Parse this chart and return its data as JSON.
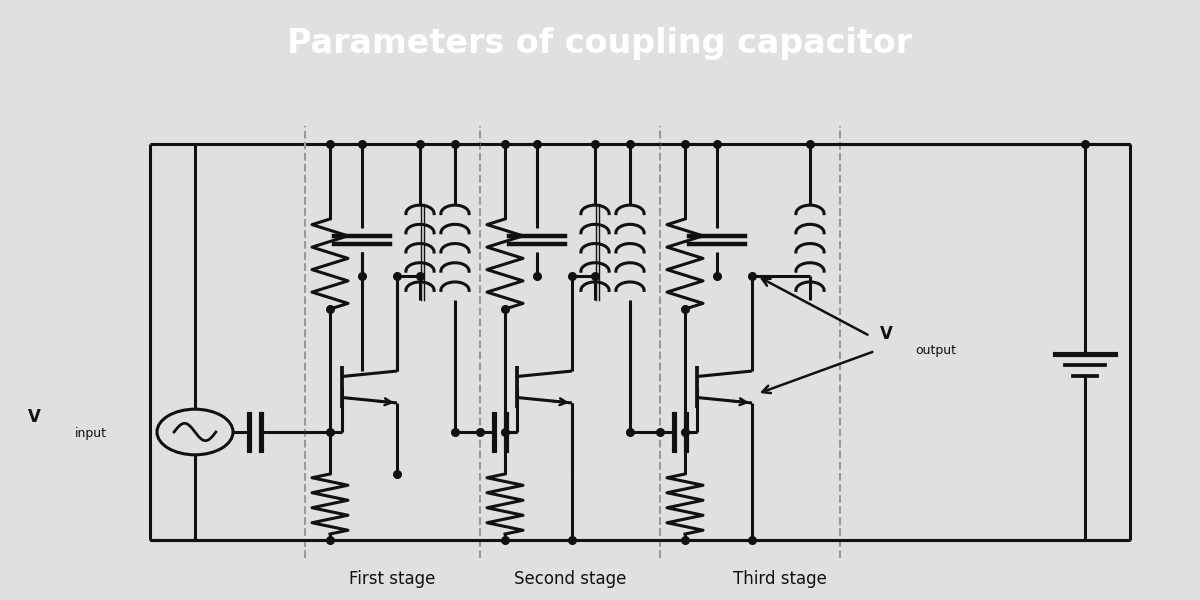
{
  "title": "Parameters of coupling capacitor",
  "title_bg_color": "#383838",
  "title_text_color": "#ffffff",
  "bg_color": "#e0e0e0",
  "circuit_bg_color": "#e8e8e8",
  "line_color": "#111111",
  "dashed_color": "#999999",
  "text_color": "#111111",
  "stage_labels": [
    "First stage",
    "Second stage",
    "Third stage"
  ],
  "lw": 2.2,
  "dot_size": 5.5,
  "title_fontsize": 24
}
